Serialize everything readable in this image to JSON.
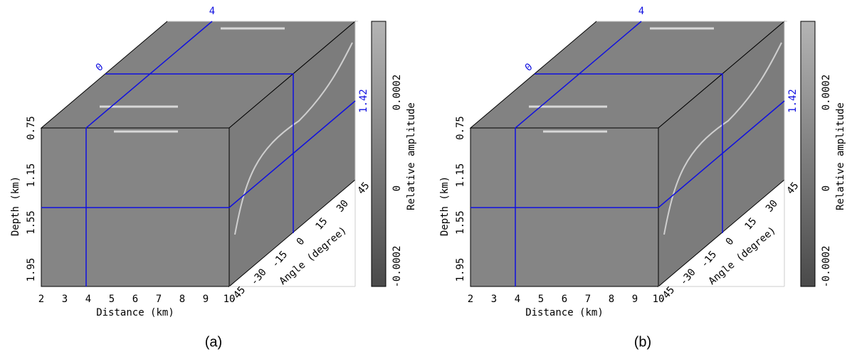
{
  "panels": [
    {
      "caption": "(a)",
      "markers": {
        "distance": "4",
        "angle": "0",
        "depth": "1.42"
      },
      "depth_axis": {
        "label": "Depth (km)",
        "ticks": [
          "0.75",
          "1.15",
          "1.55",
          "1.95"
        ]
      },
      "distance_axis": {
        "label": "Distance (km)",
        "ticks": [
          "2",
          "3",
          "4",
          "5",
          "6",
          "7",
          "8",
          "9",
          "10"
        ]
      },
      "angle_axis": {
        "label": "Angle (degree)",
        "ticks": [
          "-45",
          "-30",
          "-15",
          "0",
          "15",
          "30",
          "45"
        ]
      },
      "colorbar": {
        "label": "Relative amplitude",
        "ticks": [
          "0.0002",
          "0",
          "-0.0002"
        ]
      }
    },
    {
      "caption": "(b)",
      "markers": {
        "distance": "4",
        "angle": "0",
        "depth": "1.42"
      },
      "depth_axis": {
        "label": "Depth (km)",
        "ticks": [
          "0.75",
          "1.15",
          "1.55",
          "1.95"
        ]
      },
      "distance_axis": {
        "label": "Distance (km)",
        "ticks": [
          "2",
          "3",
          "4",
          "5",
          "6",
          "7",
          "8",
          "9",
          "10"
        ]
      },
      "angle_axis": {
        "label": "Angle (degree)",
        "ticks": [
          "-45",
          "-30",
          "-15",
          "0",
          "15",
          "30",
          "45"
        ]
      },
      "colorbar": {
        "label": "Relative amplitude",
        "ticks": [
          "0.0002",
          "0",
          "-0.0002"
        ]
      }
    }
  ]
}
